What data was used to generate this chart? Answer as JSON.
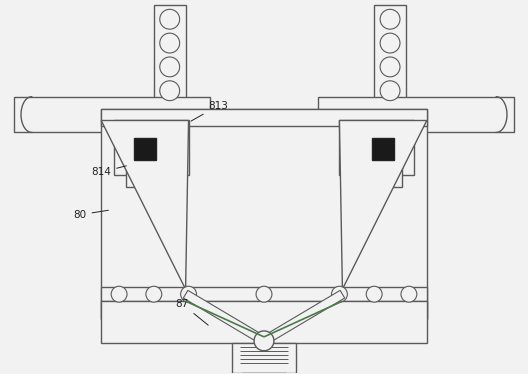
{
  "bg_color": "#f2f2f2",
  "line_color": "#5a5a5a",
  "dark_color": "#222222",
  "fill_bg": "#f2f2f2",
  "fill_dark": "#1a1a1a",
  "figsize": [
    5.28,
    3.74
  ],
  "dpi": 100
}
